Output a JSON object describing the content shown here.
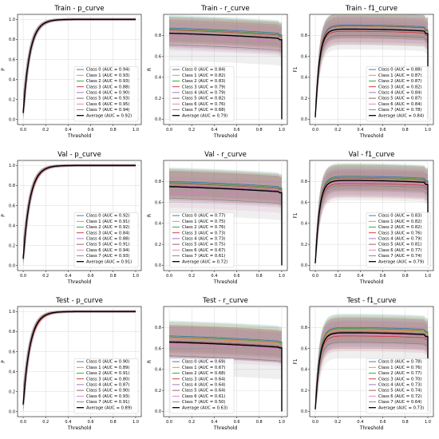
{
  "colors": [
    "#1f77b4",
    "#ff7f0e",
    "#2ca02c",
    "#d62728",
    "#9467bd",
    "#8c564b",
    "#e377c2",
    "#7f7f7f"
  ],
  "average_color": "#000000",
  "chart_data": [
    {
      "type": "line",
      "title": "Train - p_curve",
      "xlabel": "Threshold",
      "ylabel": "P",
      "xlim": [
        0,
        1
      ],
      "ylim": [
        0,
        1.05
      ],
      "xticks": [
        "0.0",
        "0.2",
        "0.4",
        "0.6",
        "0.8",
        "1.0"
      ],
      "yticks": [
        "0.0",
        "0.2",
        "0.4",
        "0.6",
        "0.8",
        "1.0"
      ],
      "grid": true,
      "legend_position": "lower-right",
      "series": [
        {
          "name": "Class 0 (AUC = 0.94)"
        },
        {
          "name": "Class 1 (AUC = 0.93)"
        },
        {
          "name": "Class 2 (AUC = 0.93)"
        },
        {
          "name": "Class 3 (AUC = 0.88)"
        },
        {
          "name": "Class 4 (AUC = 0.90)"
        },
        {
          "name": "Class 5 (AUC = 0.93)"
        },
        {
          "name": "Class 6 (AUC = 0.95)"
        },
        {
          "name": "Class 7 (AUC = 0.94)"
        },
        {
          "name": "Average (AUC = 0.92)"
        }
      ]
    },
    {
      "type": "line",
      "title": "Train - r_curve",
      "xlabel": "Threshold",
      "ylabel": "R",
      "xlim": [
        0,
        1
      ],
      "ylim": [
        0,
        1.0
      ],
      "xticks": [
        "0.0",
        "0.2",
        "0.4",
        "0.6",
        "0.8",
        "1.0"
      ],
      "yticks": [
        "0.0",
        "0.2",
        "0.4",
        "0.6",
        "0.8"
      ],
      "grid": true,
      "legend_position": "lower-left",
      "series": [
        {
          "name": "Class 0 (AUC = 0.84)"
        },
        {
          "name": "Class 1 (AUC = 0.82)"
        },
        {
          "name": "Class 2 (AUC = 0.83)"
        },
        {
          "name": "Class 3 (AUC = 0.79)"
        },
        {
          "name": "Class 4 (AUC = 0.79)"
        },
        {
          "name": "Class 5 (AUC = 0.82)"
        },
        {
          "name": "Class 6 (AUC = 0.76)"
        },
        {
          "name": "Class 7 (AUC = 0.68)"
        },
        {
          "name": "Average (AUC = 0.79)"
        }
      ]
    },
    {
      "type": "line",
      "title": "Train - f1_curve",
      "xlabel": "Threshold",
      "ylabel": "F1",
      "xlim": [
        0,
        1
      ],
      "ylim": [
        0,
        1.0
      ],
      "xticks": [
        "0.0",
        "0.2",
        "0.4",
        "0.6",
        "0.8",
        "1.0"
      ],
      "yticks": [
        "0.0",
        "0.2",
        "0.4",
        "0.6",
        "0.8"
      ],
      "grid": true,
      "legend_position": "lower-right",
      "series": [
        {
          "name": "Class 0 (AUC = 0.88)"
        },
        {
          "name": "Class 1 (AUC = 0.87)"
        },
        {
          "name": "Class 2 (AUC = 0.87)"
        },
        {
          "name": "Class 3 (AUC = 0.82)"
        },
        {
          "name": "Class 4 (AUC = 0.84)"
        },
        {
          "name": "Class 5 (AUC = 0.87)"
        },
        {
          "name": "Class 6 (AUC = 0.84)"
        },
        {
          "name": "Class 7 (AUC = 0.78)"
        },
        {
          "name": "Average (AUC = 0.84)"
        }
      ]
    },
    {
      "type": "line",
      "title": "Val - p_curve",
      "xlabel": "Threshold",
      "ylabel": "P",
      "xlim": [
        0,
        1
      ],
      "ylim": [
        0,
        1.05
      ],
      "xticks": [
        "0.0",
        "0.2",
        "0.4",
        "0.6",
        "0.8",
        "1.0"
      ],
      "yticks": [
        "0.0",
        "0.2",
        "0.4",
        "0.6",
        "0.8",
        "1.0"
      ],
      "grid": true,
      "legend_position": "lower-right",
      "series": [
        {
          "name": "Class 0 (AUC = 0.92)"
        },
        {
          "name": "Class 1 (AUC = 0.91)"
        },
        {
          "name": "Class 2 (AUC = 0.92)"
        },
        {
          "name": "Class 3 (AUC = 0.84)"
        },
        {
          "name": "Class 4 (AUC = 0.88)"
        },
        {
          "name": "Class 5 (AUC = 0.91)"
        },
        {
          "name": "Class 6 (AUC = 0.94)"
        },
        {
          "name": "Class 7 (AUC = 0.93)"
        },
        {
          "name": "Average (AUC = 0.91)"
        }
      ]
    },
    {
      "type": "line",
      "title": "Val - r_curve",
      "xlabel": "Threshold",
      "ylabel": "R",
      "xlim": [
        0,
        1
      ],
      "ylim": [
        0,
        1.0
      ],
      "xticks": [
        "0.0",
        "0.2",
        "0.4",
        "0.6",
        "0.8",
        "1.0"
      ],
      "yticks": [
        "0.0",
        "0.2",
        "0.4",
        "0.6",
        "0.8"
      ],
      "grid": true,
      "legend_position": "lower-left",
      "series": [
        {
          "name": "Class 0 (AUC = 0.77)"
        },
        {
          "name": "Class 1 (AUC = 0.75)"
        },
        {
          "name": "Class 2 (AUC = 0.76)"
        },
        {
          "name": "Class 3 (AUC = 0.73)"
        },
        {
          "name": "Class 4 (AUC = 0.73)"
        },
        {
          "name": "Class 5 (AUC = 0.75)"
        },
        {
          "name": "Class 6 (AUC = 0.67)"
        },
        {
          "name": "Class 7 (AUC = 0.61)"
        },
        {
          "name": "Average (AUC = 0.72)"
        }
      ]
    },
    {
      "type": "line",
      "title": "Val - f1_curve",
      "xlabel": "Threshold",
      "ylabel": "F1",
      "xlim": [
        0,
        1
      ],
      "ylim": [
        0,
        1.0
      ],
      "xticks": [
        "0.0",
        "0.2",
        "0.4",
        "0.6",
        "0.8",
        "1.0"
      ],
      "yticks": [
        "0.0",
        "0.2",
        "0.4",
        "0.6",
        "0.8"
      ],
      "grid": true,
      "legend_position": "lower-right",
      "series": [
        {
          "name": "Class 0 (AUC = 0.83)"
        },
        {
          "name": "Class 1 (AUC = 0.82)"
        },
        {
          "name": "Class 2 (AUC = 0.82)"
        },
        {
          "name": "Class 3 (AUC = 0.76)"
        },
        {
          "name": "Class 4 (AUC = 0.79)"
        },
        {
          "name": "Class 5 (AUC = 0.81)"
        },
        {
          "name": "Class 6 (AUC = 0.77)"
        },
        {
          "name": "Class 7 (AUC = 0.74)"
        },
        {
          "name": "Average (AUC = 0.79)"
        }
      ]
    },
    {
      "type": "line",
      "title": "Test - p_curve",
      "xlabel": "Threshold",
      "ylabel": "P",
      "xlim": [
        0,
        1
      ],
      "ylim": [
        0,
        1.05
      ],
      "xticks": [
        "0.0",
        "0.2",
        "0.4",
        "0.6",
        "0.8",
        "1.0"
      ],
      "yticks": [
        "0.0",
        "0.2",
        "0.4",
        "0.6",
        "0.8",
        "1.0"
      ],
      "grid": true,
      "legend_position": "lower-right",
      "series": [
        {
          "name": "Class 0 (AUC = 0.90)"
        },
        {
          "name": "Class 1 (AUC = 0.89)"
        },
        {
          "name": "Class 2 (AUC = 0.91)"
        },
        {
          "name": "Class 3 (AUC = 0.80)"
        },
        {
          "name": "Class 4 (AUC = 0.87)"
        },
        {
          "name": "Class 5 (AUC = 0.90)"
        },
        {
          "name": "Class 6 (AUC = 0.93)"
        },
        {
          "name": "Class 7 (AUC = 0.91)"
        },
        {
          "name": "Average (AUC = 0.89)"
        }
      ]
    },
    {
      "type": "line",
      "title": "Test - r_curve",
      "xlabel": "Threshold",
      "ylabel": "R",
      "xlim": [
        0,
        1
      ],
      "ylim": [
        0,
        1.0
      ],
      "xticks": [
        "0.0",
        "0.2",
        "0.4",
        "0.6",
        "0.8",
        "1.0"
      ],
      "yticks": [
        "0.0",
        "0.2",
        "0.4",
        "0.6",
        "0.8"
      ],
      "grid": true,
      "legend_position": "lower-left",
      "series": [
        {
          "name": "Class 0 (AUC = 0.69)"
        },
        {
          "name": "Class 1 (AUC = 0.67)"
        },
        {
          "name": "Class 2 (AUC = 0.68)"
        },
        {
          "name": "Class 3 (AUC = 0.64)"
        },
        {
          "name": "Class 4 (AUC = 0.64)"
        },
        {
          "name": "Class 5 (AUC = 0.64)"
        },
        {
          "name": "Class 6 (AUC = 0.61)"
        },
        {
          "name": "Class 7 (AUC = 0.50)"
        },
        {
          "name": "Average (AUC = 0.63)"
        }
      ]
    },
    {
      "type": "line",
      "title": "Test - f1_curve",
      "xlabel": "Threshold",
      "ylabel": "F1",
      "xlim": [
        0,
        1
      ],
      "ylim": [
        0,
        1.0
      ],
      "xticks": [
        "0.0",
        "0.2",
        "0.4",
        "0.6",
        "0.8",
        "1.0"
      ],
      "yticks": [
        "0.0",
        "0.2",
        "0.4",
        "0.6",
        "0.8"
      ],
      "grid": true,
      "legend_position": "lower-right",
      "series": [
        {
          "name": "Class 0 (AUC = 0.78)"
        },
        {
          "name": "Class 1 (AUC = 0.76)"
        },
        {
          "name": "Class 2 (AUC = 0.77)"
        },
        {
          "name": "Class 3 (AUC = 0.70)"
        },
        {
          "name": "Class 4 (AUC = 0.73)"
        },
        {
          "name": "Class 5 (AUC = 0.74)"
        },
        {
          "name": "Class 6 (AUC = 0.72)"
        },
        {
          "name": "Class 7 (AUC = 0.64)"
        },
        {
          "name": "Average (AUC = 0.73)"
        }
      ]
    }
  ]
}
